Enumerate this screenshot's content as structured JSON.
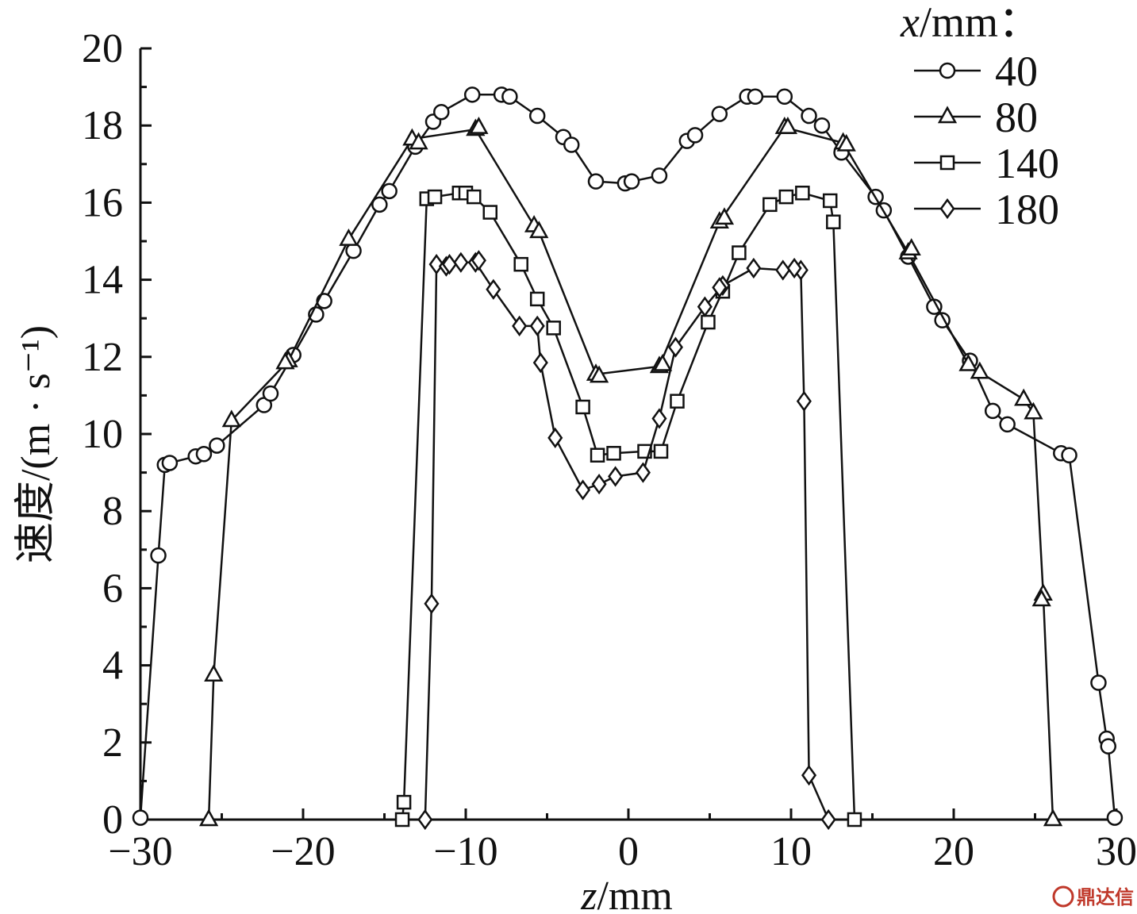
{
  "chart_data": {
    "type": "line",
    "xlabel_var": "z",
    "xlabel_unit": "/mm",
    "ylabel": "速度/(m · s⁻¹)",
    "xlim": [
      -30,
      30
    ],
    "ylim": [
      0,
      20
    ],
    "xticks": [
      "−30",
      "−20",
      "−10",
      "0",
      "10",
      "20",
      "30"
    ],
    "yticks": [
      "0",
      "2",
      "4",
      "6",
      "8",
      "10",
      "12",
      "14",
      "16",
      "18",
      "20"
    ],
    "legend_title_var": "x",
    "legend_title_unit": "/mm：",
    "legend_position": "top-right",
    "series": [
      {
        "name": "40",
        "marker": "circle",
        "x": [
          -30,
          -28.9,
          -28.5,
          -28.2,
          -26.6,
          -26.1,
          -25.3,
          -22.4,
          -22.0,
          -20.6,
          -19.2,
          -18.7,
          -16.9,
          -15.3,
          -14.7,
          -13.1,
          -12.0,
          -11.5,
          -9.6,
          -7.8,
          -7.3,
          -5.6,
          -4.0,
          -3.5,
          -2.0,
          -0.2,
          0.2,
          1.9,
          3.6,
          4.1,
          5.6,
          7.3,
          7.8,
          9.6,
          11.1,
          11.9,
          13.1,
          15.2,
          15.7,
          17.2,
          18.8,
          19.3,
          21.0,
          22.4,
          23.3,
          26.6,
          27.1,
          28.9,
          29.4,
          29.5,
          29.9
        ],
        "y": [
          0.05,
          6.85,
          9.2,
          9.25,
          9.42,
          9.48,
          9.7,
          10.75,
          11.05,
          12.05,
          13.1,
          13.45,
          14.75,
          15.95,
          16.3,
          17.45,
          18.1,
          18.35,
          18.8,
          18.8,
          18.75,
          18.25,
          17.7,
          17.5,
          16.55,
          16.5,
          16.55,
          16.7,
          17.6,
          17.75,
          18.3,
          18.75,
          18.75,
          18.75,
          18.25,
          18.0,
          17.3,
          16.15,
          15.8,
          14.6,
          13.3,
          12.95,
          11.9,
          10.6,
          10.25,
          9.5,
          9.45,
          3.55,
          2.1,
          1.9,
          0.05
        ]
      },
      {
        "name": "80",
        "marker": "triangle",
        "x": [
          -25.8,
          -25.5,
          -24.4,
          -20.9,
          -17.2,
          -13.3,
          -9.4,
          -5.8,
          -5.5,
          -2.0,
          1.9,
          5.6,
          9.6,
          13.2,
          17.2,
          20.9,
          21.6,
          24.3,
          24.9,
          25.5,
          26.1
        ],
        "y": [
          0.0,
          3.75,
          10.35,
          11.9,
          15.05,
          17.65,
          17.9,
          15.4,
          15.25,
          11.55,
          11.75,
          15.5,
          17.95,
          17.55,
          14.7,
          11.8,
          11.6,
          10.9,
          10.55,
          5.85,
          0.0
        ],
        "extra_points": [
          [
            -21.1,
            11.85
          ],
          [
            -12.9,
            17.55
          ],
          [
            -9.2,
            17.95
          ],
          [
            -1.8,
            11.5
          ],
          [
            2.1,
            11.8
          ],
          [
            5.9,
            15.6
          ],
          [
            9.8,
            17.95
          ],
          [
            13.4,
            17.5
          ],
          [
            17.4,
            14.8
          ],
          [
            25.4,
            5.7
          ]
        ]
      },
      {
        "name": "140",
        "marker": "square",
        "x": [
          -13.9,
          -13.8,
          -12.4,
          -11.9,
          -10.4,
          -10.0,
          -9.5,
          -8.5,
          -6.6,
          -5.6,
          -4.6,
          -2.8,
          -1.9,
          -0.9,
          1.0,
          2.0,
          3.0,
          4.9,
          5.8,
          6.8,
          8.7,
          9.7,
          10.7,
          12.4,
          12.6,
          13.9
        ],
        "y": [
          0.0,
          0.45,
          16.1,
          16.15,
          16.25,
          16.25,
          16.15,
          15.75,
          14.4,
          13.5,
          12.75,
          10.7,
          9.45,
          9.5,
          9.55,
          9.55,
          10.85,
          12.9,
          13.7,
          14.7,
          15.95,
          16.15,
          16.25,
          16.05,
          15.5,
          0.0
        ]
      },
      {
        "name": "180",
        "marker": "diamond",
        "x": [
          -12.5,
          -12.1,
          -11.8,
          -11.2,
          -10.3,
          -9.4,
          -8.3,
          -6.7,
          -5.6,
          -5.4,
          -4.5,
          -2.8,
          -1.8,
          -0.8,
          0.9,
          1.9,
          2.9,
          4.7,
          5.8,
          7.7,
          9.5,
          10.6,
          10.8,
          11.1,
          12.3
        ],
        "y": [
          0.0,
          5.6,
          14.4,
          14.35,
          14.45,
          14.45,
          13.75,
          12.8,
          12.8,
          11.85,
          9.9,
          8.55,
          8.7,
          8.9,
          9.0,
          10.4,
          12.25,
          13.3,
          13.85,
          14.3,
          14.25,
          14.25,
          10.85,
          1.15,
          0.0
        ],
        "extra_points": [
          [
            -11.0,
            14.4
          ],
          [
            -9.2,
            14.5
          ],
          [
            5.6,
            13.8
          ],
          [
            10.2,
            14.3
          ]
        ]
      }
    ]
  },
  "watermark_text": "鼎达信"
}
